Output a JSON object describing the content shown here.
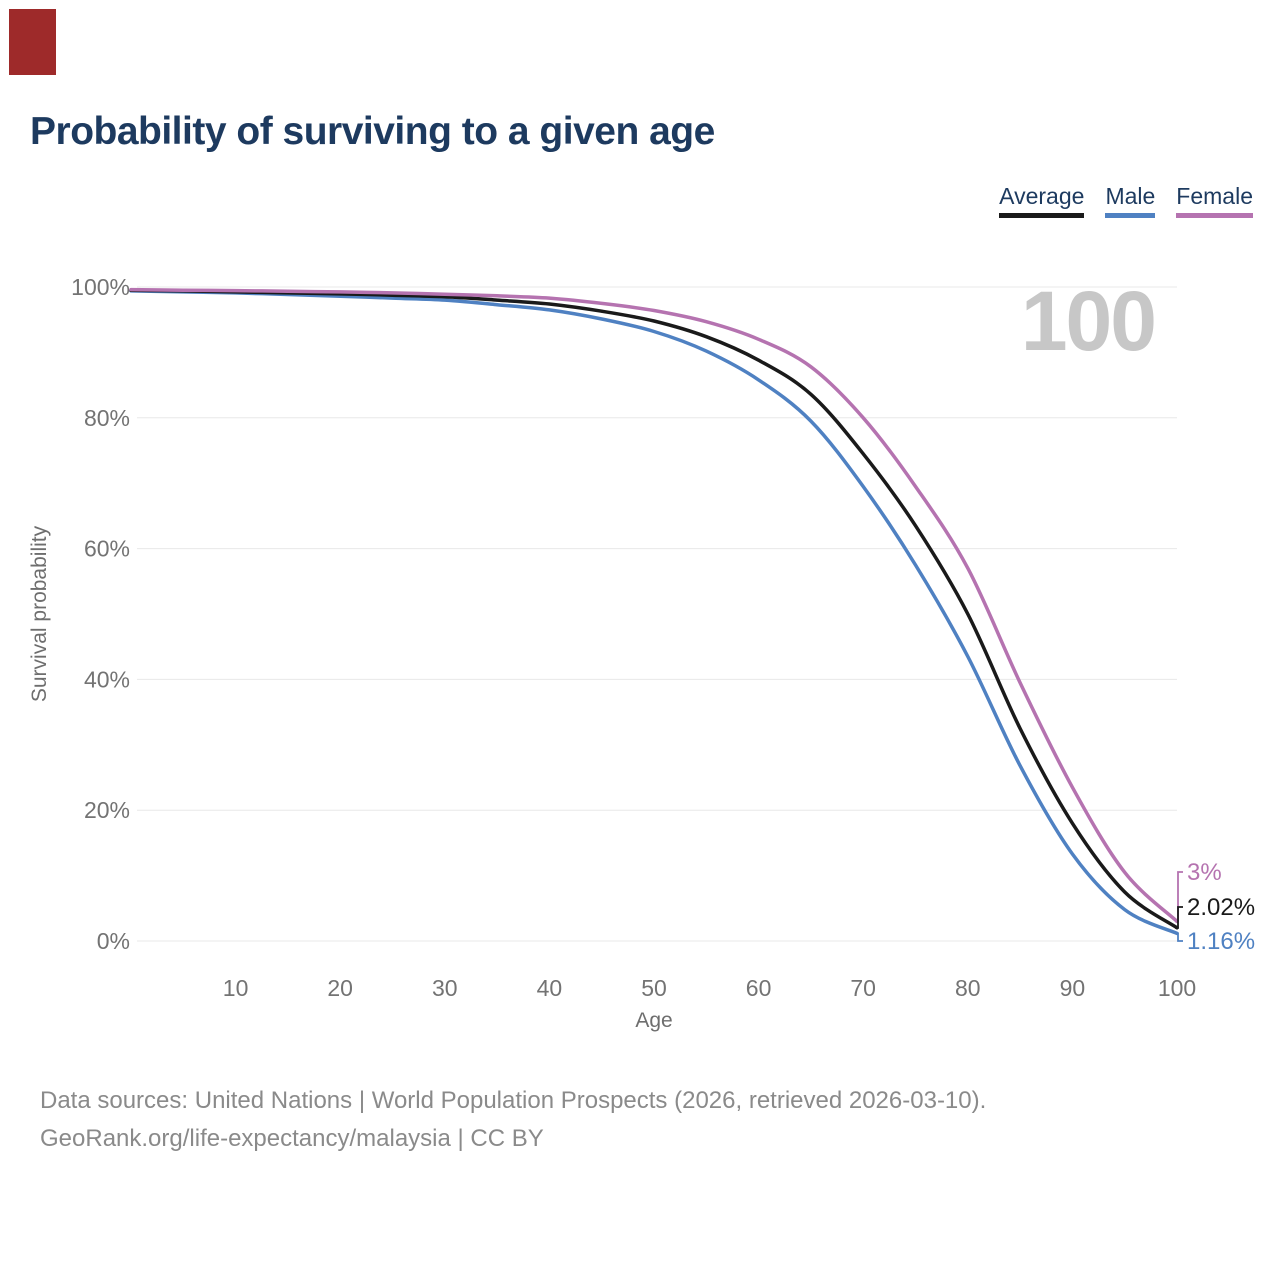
{
  "marker": {
    "color": "#9e2a2a"
  },
  "header": {
    "title": "Probability of surviving to a given age"
  },
  "legend": {
    "items": [
      {
        "label": "Average",
        "color": "#1a1a1a"
      },
      {
        "label": "Male",
        "color": "#4f81c2"
      },
      {
        "label": "Female",
        "color": "#b573b0"
      }
    ]
  },
  "watermark": "100",
  "chart_data": {
    "type": "line",
    "title": "Probability of surviving to a given age",
    "xlabel": "Age",
    "ylabel": "Survival probability",
    "xlim": [
      0,
      100
    ],
    "ylim": [
      0,
      100
    ],
    "grid": "horizontal-only",
    "legend_position": "top-right",
    "x_ticks": [
      10,
      20,
      30,
      40,
      50,
      60,
      70,
      80,
      90,
      100
    ],
    "y_ticks": [
      {
        "value": 100,
        "label": "100%"
      },
      {
        "value": 80,
        "label": "80%"
      },
      {
        "value": 60,
        "label": "60%"
      },
      {
        "value": 40,
        "label": "40%"
      },
      {
        "value": 20,
        "label": "20%"
      },
      {
        "value": 0,
        "label": "0%"
      }
    ],
    "x": [
      0,
      5,
      10,
      15,
      20,
      25,
      30,
      35,
      40,
      45,
      50,
      55,
      60,
      65,
      70,
      75,
      80,
      85,
      90,
      95,
      100
    ],
    "series": [
      {
        "name": "Average",
        "color": "#1a1a1a",
        "end_label": "2.02%",
        "values": [
          99.5,
          99.4,
          99.25,
          99.1,
          98.95,
          98.75,
          98.5,
          98.0,
          97.4,
          96.3,
          94.8,
          92.4,
          88.8,
          83.6,
          74.5,
          63.5,
          50.0,
          32.5,
          18.0,
          7.5,
          2.02
        ]
      },
      {
        "name": "Male",
        "color": "#4f81c2",
        "end_label": "1.16%",
        "values": [
          99.4,
          99.25,
          99.1,
          98.85,
          98.6,
          98.3,
          98.0,
          97.3,
          96.5,
          95.1,
          93.2,
          90.2,
          85.8,
          79.5,
          69.5,
          57.5,
          43.5,
          26.8,
          13.3,
          4.8,
          1.16
        ]
      },
      {
        "name": "Female",
        "color": "#b573b0",
        "end_label": "3%",
        "values": [
          99.6,
          99.5,
          99.45,
          99.35,
          99.25,
          99.1,
          98.9,
          98.65,
          98.3,
          97.5,
          96.4,
          94.7,
          92.0,
          87.8,
          80.0,
          69.5,
          57.0,
          39.5,
          23.5,
          10.5,
          3.0
        ]
      }
    ]
  },
  "footer": {
    "line1": "Data sources: United Nations | World Population Prospects (2026, retrieved 2026-03-10).",
    "line2": "GeoRank.org/life-expectancy/malaysia | CC BY"
  }
}
